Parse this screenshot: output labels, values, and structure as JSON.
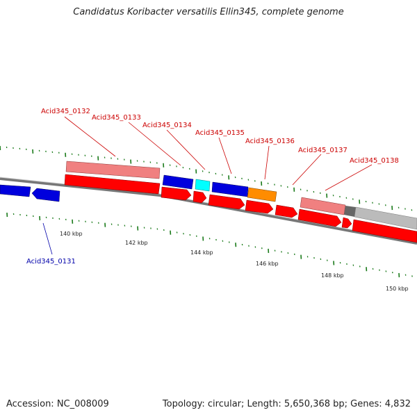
{
  "header": {
    "title": "Candidatus Koribacter versatilis Ellin345, complete genome"
  },
  "footer": {
    "accession": "Accession: NC_008009",
    "stats": "Topology: circular; Length: 5,650,368 bp; Genes: 4,832"
  },
  "colors": {
    "forward_cds": "#ff0000",
    "forward_feature": "#f08080",
    "reverse_cds": "#0000dd",
    "cyan_feature": "#00ffff",
    "orange_feature": "#ff8c00",
    "grey_feature": "#bbbbbb",
    "backbone": "#777777",
    "tick": "#1a7a1a",
    "label_forward": "#cc0000",
    "label_reverse": "#0000aa"
  },
  "scale": {
    "ticks": [
      {
        "label": "140 kbp"
      },
      {
        "label": "142 kbp"
      },
      {
        "label": "144 kbp"
      },
      {
        "label": "146 kbp"
      },
      {
        "label": "148 kbp"
      },
      {
        "label": "150 kbp"
      }
    ]
  },
  "genes": [
    {
      "label": "Acid345_0131",
      "strand": "reverse"
    },
    {
      "label": "Acid345_0132",
      "strand": "forward"
    },
    {
      "label": "Acid345_0133",
      "strand": "reverse"
    },
    {
      "label": "Acid345_0134",
      "strand": "forward"
    },
    {
      "label": "Acid345_0135",
      "strand": "reverse"
    },
    {
      "label": "Acid345_0136",
      "strand": "forward"
    },
    {
      "label": "Acid345_0137",
      "strand": "forward"
    },
    {
      "label": "Acid345_0138",
      "strand": "forward"
    }
  ]
}
